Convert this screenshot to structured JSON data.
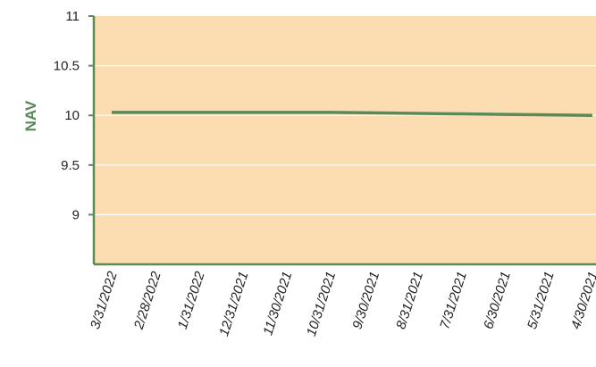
{
  "chart_data": {
    "type": "line",
    "title": "",
    "xlabel": "",
    "ylabel": "NAV",
    "ylim": [
      8.5,
      11
    ],
    "yticks": [
      9,
      9.5,
      10,
      10.5,
      11
    ],
    "ytick_labels": [
      "9",
      "9.5",
      "10",
      "10.5",
      "11"
    ],
    "categories": [
      "3/31/2022",
      "2/28/2022",
      "1/31/2022",
      "12/31/2021",
      "11/30/2021",
      "10/31/2021",
      "9/30/2021",
      "8/31/2021",
      "7/31/2021",
      "6/30/2021",
      "5/31/2021",
      "4/30/2021"
    ],
    "series": [
      {
        "values": [
          10.03,
          10.03,
          10.03,
          10.03,
          10.03,
          10.03,
          10.025,
          10.02,
          10.015,
          10.01,
          10.005,
          10.0
        ]
      }
    ],
    "grid": true,
    "colors": {
      "plot_background": "#FBDDB1",
      "line": "#5A8A58",
      "axis": "#5A8A58",
      "ylabel": "#5A8A58",
      "gridline": "#FFFFFF"
    }
  }
}
